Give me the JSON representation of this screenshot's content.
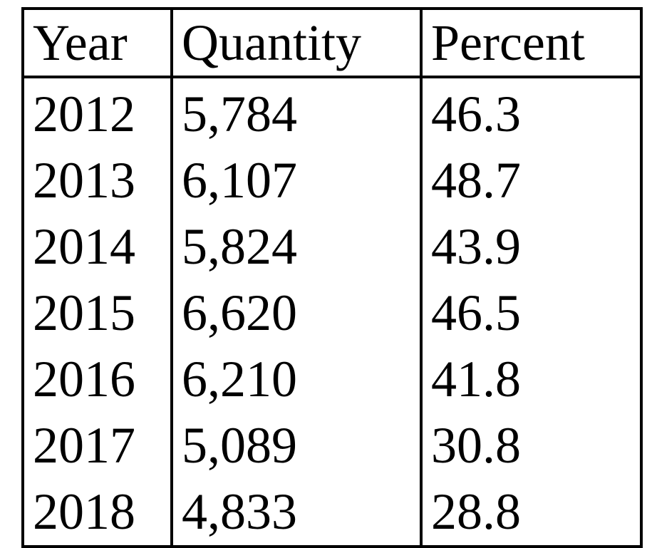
{
  "table": {
    "headers": [
      "Year",
      "Quantity",
      "Percent"
    ],
    "rows": [
      [
        "2012",
        "5,784",
        "46.3"
      ],
      [
        "2013",
        "6,107",
        "48.7"
      ],
      [
        "2014",
        "5,824",
        "43.9"
      ],
      [
        "2015",
        "6,620",
        "46.5"
      ],
      [
        "2016",
        "6,210",
        "41.8"
      ],
      [
        "2017",
        "5,089",
        "30.8"
      ],
      [
        "2018",
        "4,833",
        "28.8"
      ]
    ]
  }
}
